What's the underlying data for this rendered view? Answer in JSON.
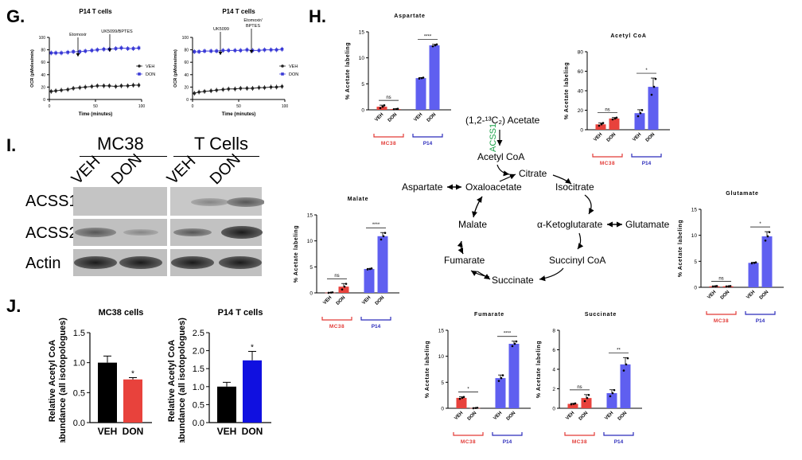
{
  "panels": {
    "G": "G.",
    "H": "H.",
    "I": "I.",
    "J": "J."
  },
  "colors": {
    "veh_g": "#222222",
    "don_g": "#3a3ad6",
    "mc38": "#e8423c",
    "p14": "#5f5ff0",
    "red_text": "#e23a36",
    "blue_text": "#2b2bbb",
    "acss1": "#1da34a"
  },
  "panel_g": {
    "charts": [
      {
        "title": "P14 T cells",
        "ylabel": "OCR (pMoles/min)",
        "xlabel": "Time (minutes)",
        "annotations": [
          "Etomoxir",
          "UK5099/BPTES"
        ],
        "legend": [
          "VEH",
          "DON"
        ],
        "yticks": [
          "0",
          "20",
          "40",
          "60",
          "80",
          "100"
        ],
        "xticks": [
          "0",
          "50",
          "100"
        ]
      },
      {
        "title": "P14 T cells",
        "ylabel": "OCR (pMoles/min)",
        "xlabel": "Time (minutes)",
        "annotations": [
          "UK5099",
          "Etomoxir/",
          "BPTES"
        ],
        "legend": [
          "VEH",
          "DON"
        ],
        "yticks": [
          "0",
          "20",
          "40",
          "60",
          "80",
          "100"
        ],
        "xticks": [
          "0",
          "50",
          "100"
        ]
      }
    ]
  },
  "panel_i": {
    "group1": "MC38",
    "group2": "T Cells",
    "lanes": [
      "VEH",
      "DON",
      "VEH",
      "DON"
    ],
    "rows": [
      "ACSS1",
      "ACSS2",
      "Actin"
    ]
  },
  "panel_j": {
    "ylabel1": "Relative Acetyl CoA",
    "ylabel2": "abundance (all isotopologues)",
    "star": "*"
  },
  "panel_h": {
    "ylabel": "% Acetate labeling",
    "xcats": [
      "VEH",
      "DON",
      "VEH",
      "DON"
    ],
    "groups": [
      "MC38",
      "P14"
    ],
    "pathway": {
      "precursor": "(1,2-¹³C₂) Acetate",
      "enzyme": "ACSS1",
      "nodes": [
        "Acetyl CoA",
        "Citrate",
        "Isocitrate",
        "α-Ketoglutarate",
        "Glutamate",
        "Succinyl CoA",
        "Succinate",
        "Fumarate",
        "Malate",
        "Oxaloacetate",
        "Aspartate"
      ]
    }
  },
  "chart_data": [
    {
      "type": "line",
      "title": "P14 T cells",
      "xlabel": "Time (minutes)",
      "ylabel": "OCR (pMoles/min)",
      "ylim": [
        0,
        100
      ],
      "xlim": [
        0,
        100
      ],
      "x": [
        2,
        7,
        13,
        20,
        26,
        33,
        39,
        46,
        52,
        59,
        65,
        72,
        78,
        85,
        91,
        97
      ],
      "series": [
        {
          "name": "VEH",
          "values": [
            13,
            14,
            15,
            16,
            18,
            19,
            20,
            21,
            22,
            22,
            22,
            21,
            22,
            22,
            23,
            23
          ]
        },
        {
          "name": "DON",
          "values": [
            75,
            75,
            75,
            76,
            77,
            77,
            78,
            79,
            80,
            81,
            81,
            82,
            83,
            82,
            82,
            83
          ]
        }
      ]
    },
    {
      "type": "line",
      "title": "P14 T cells",
      "xlabel": "Time (minutes)",
      "ylabel": "OCR (pMoles/min)",
      "ylim": [
        0,
        100
      ],
      "xlim": [
        0,
        100
      ],
      "x": [
        2,
        7,
        13,
        20,
        26,
        33,
        39,
        46,
        52,
        59,
        65,
        72,
        78,
        85,
        91,
        97
      ],
      "series": [
        {
          "name": "VEH",
          "values": [
            10,
            12,
            13,
            14,
            15,
            16,
            17,
            17,
            18,
            18,
            18,
            19,
            19,
            20,
            20,
            21
          ]
        },
        {
          "name": "DON",
          "values": [
            77,
            77,
            78,
            78,
            78,
            79,
            79,
            79,
            79,
            80,
            79,
            79,
            80,
            80,
            80,
            81
          ]
        }
      ]
    },
    {
      "type": "bar",
      "title": "MC38 cells",
      "categories": [
        "VEH",
        "DON"
      ],
      "values": [
        1.0,
        0.72
      ],
      "errors": [
        0.11,
        0.03
      ],
      "ylim": [
        0,
        1.5
      ],
      "yticks": [
        "0.0",
        "0.5",
        "1.0",
        "1.5"
      ],
      "significance": [
        "",
        "*"
      ]
    },
    {
      "type": "bar",
      "title": "P14 T cells",
      "categories": [
        "VEH",
        "DON"
      ],
      "values": [
        1.0,
        1.73
      ],
      "errors": [
        0.12,
        0.25
      ],
      "ylim": [
        0,
        2.5
      ],
      "yticks": [
        "0.0",
        "0.5",
        "1.0",
        "1.5",
        "2.0",
        "2.5"
      ],
      "significance": [
        "",
        "*"
      ]
    },
    {
      "type": "bar",
      "title": "Aspartate",
      "categories": [
        "VEH",
        "DON",
        "VEH",
        "DON"
      ],
      "values": [
        0.6,
        0.15,
        6.1,
        12.4
      ],
      "errors": [
        0.3,
        0.05,
        0.1,
        0.2
      ],
      "ylim": [
        0,
        15
      ],
      "yticks": [
        "0",
        "5",
        "10",
        "15"
      ],
      "sig": [
        [
          "ns",
          0,
          1
        ],
        [
          "****",
          2,
          3
        ]
      ]
    },
    {
      "type": "bar",
      "title": "Acetyl CoA",
      "categories": [
        "VEH",
        "DON",
        "VEH",
        "DON"
      ],
      "values": [
        5.5,
        11.5,
        17,
        44
      ],
      "errors": [
        1.5,
        1.0,
        3.5,
        9
      ],
      "ylim": [
        0,
        80
      ],
      "yticks": [
        "0",
        "20",
        "40",
        "60",
        "80"
      ],
      "sig": [
        [
          "ns",
          0,
          1
        ],
        [
          "*",
          2,
          3
        ]
      ]
    },
    {
      "type": "bar",
      "title": "Malate",
      "categories": [
        "VEH",
        "DON",
        "VEH",
        "DON"
      ],
      "values": [
        0.05,
        1.2,
        4.6,
        10.9
      ],
      "errors": [
        0.05,
        0.6,
        0.1,
        0.7
      ],
      "ylim": [
        0,
        15
      ],
      "yticks": [
        "0",
        "5",
        "10",
        "15"
      ],
      "sig": [
        [
          "ns",
          0,
          1
        ],
        [
          "****",
          2,
          3
        ]
      ]
    },
    {
      "type": "bar",
      "title": "Glutamate",
      "categories": [
        "VEH",
        "DON",
        "VEH",
        "DON"
      ],
      "values": [
        0.2,
        0.2,
        4.7,
        9.8
      ],
      "errors": [
        0.05,
        0.05,
        0.1,
        0.9
      ],
      "ylim": [
        0,
        15
      ],
      "yticks": [
        "0",
        "5",
        "10",
        "15"
      ],
      "sig": [
        [
          "ns",
          0,
          1
        ],
        [
          "*",
          2,
          3
        ]
      ]
    },
    {
      "type": "bar",
      "title": "Fumarate",
      "categories": [
        "VEH",
        "DON",
        "VEH",
        "DON"
      ],
      "values": [
        2.0,
        0.05,
        5.8,
        12.4
      ],
      "errors": [
        0.2,
        0.05,
        0.6,
        0.5
      ],
      "ylim": [
        0,
        15
      ],
      "yticks": [
        "0",
        "5",
        "10",
        "15"
      ],
      "sig": [
        [
          "*",
          0,
          1
        ],
        [
          "****",
          2,
          3
        ]
      ]
    },
    {
      "type": "bar",
      "title": "Succinate",
      "categories": [
        "VEH",
        "DON",
        "VEH",
        "DON"
      ],
      "values": [
        0.45,
        1.05,
        1.55,
        4.5
      ],
      "errors": [
        0.05,
        0.35,
        0.35,
        0.7
      ],
      "ylim": [
        0,
        8
      ],
      "yticks": [
        "0",
        "2",
        "4",
        "6",
        "8"
      ],
      "sig": [
        [
          "ns",
          0,
          1
        ],
        [
          "**",
          2,
          3
        ]
      ]
    }
  ]
}
